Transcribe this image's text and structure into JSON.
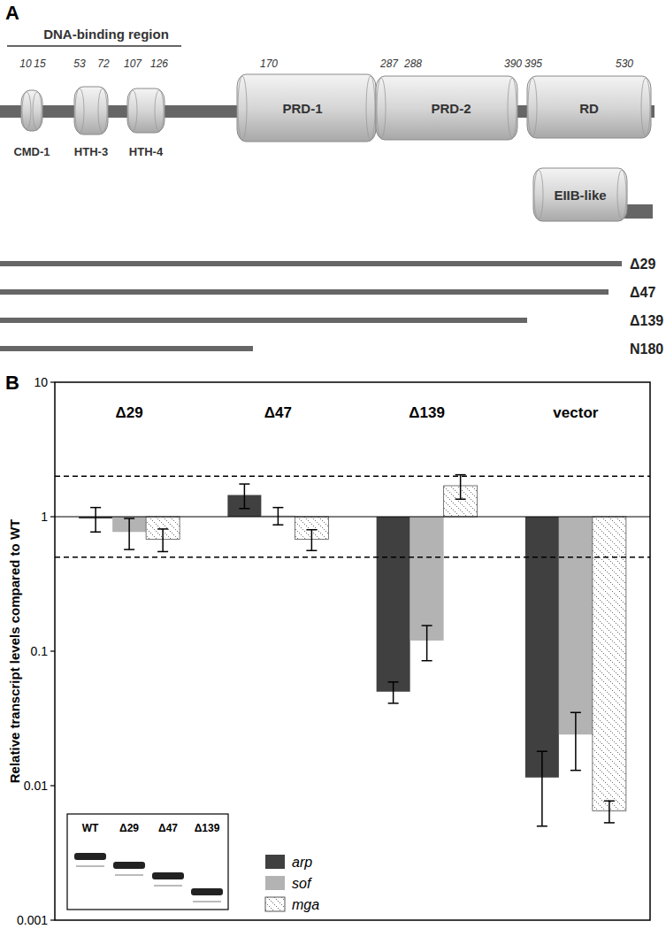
{
  "panel_a": {
    "label": "A",
    "region_label": "DNA-binding region",
    "domains": [
      {
        "label": "CMD-1",
        "start": 10,
        "end": 15
      },
      {
        "label": "HTH-3",
        "start": 53,
        "end": 72
      },
      {
        "label": "HTH-4",
        "start": 107,
        "end": 126
      },
      {
        "label": "PRD-1",
        "start": 170,
        "end": 287
      },
      {
        "label": "PRD-2",
        "start": 288,
        "end": 390
      },
      {
        "label": "RD",
        "start": 395,
        "end": 530
      },
      {
        "label": "EIIB-like"
      }
    ],
    "constructs": [
      "Δ29",
      "Δ47",
      "Δ139",
      "N180"
    ]
  },
  "chart_data": {
    "type": "bar",
    "panel_label": "B",
    "y_label": "Relative transcript levels compared to WT",
    "categories": [
      "Δ29",
      "Δ47",
      "Δ139",
      "vector"
    ],
    "series": [
      {
        "name": "arp",
        "color": "#404040",
        "values": [
          0.97,
          1.45,
          0.05,
          0.0115
        ],
        "errors": [
          0.2,
          0.3,
          0.009,
          0.0065
        ]
      },
      {
        "name": "sof",
        "color": "#b3b3b3",
        "values": [
          0.77,
          1.02,
          0.12,
          0.024
        ],
        "errors": [
          0.2,
          0.15,
          0.035,
          0.011
        ]
      },
      {
        "name": "mga",
        "color": "#ffffff",
        "values": [
          0.68,
          0.68,
          1.7,
          0.0065
        ],
        "errors": [
          0.13,
          0.12,
          0.35,
          0.0012
        ]
      }
    ],
    "ylim": [
      0.001,
      10
    ],
    "yticks": [
      0.001,
      0.01,
      0.1,
      1,
      10
    ],
    "log": "y",
    "legend": "bottom",
    "reference_lines": [
      {
        "value": 1,
        "line_style": "solid"
      },
      {
        "value": 0.5,
        "line_style": "dashed"
      },
      {
        "value": 2,
        "line_style": "dashed"
      }
    ],
    "inset_lanes": [
      "WT",
      "Δ29",
      "Δ47",
      "Δ139"
    ]
  }
}
